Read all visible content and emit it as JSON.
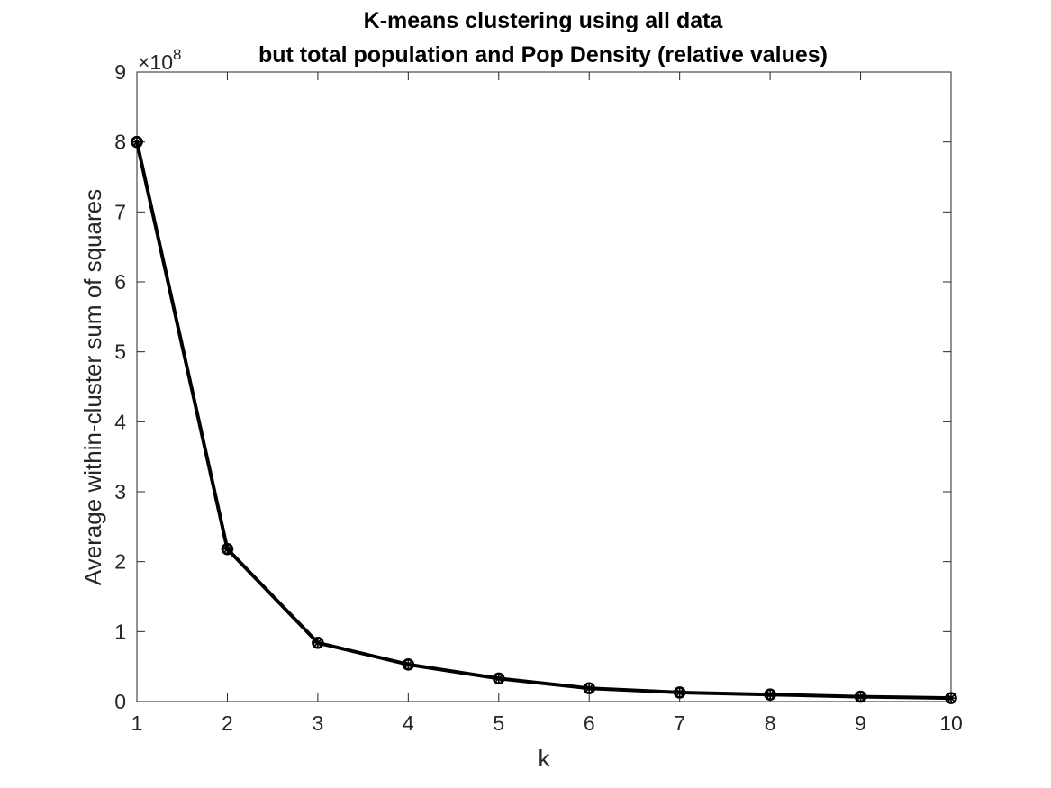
{
  "chart_data": {
    "type": "line",
    "title": "K-means clustering using all data",
    "subtitle": "but total population and Pop Density (relative values)",
    "xlabel": "k",
    "ylabel": "Average within-cluster sum of squares",
    "y_exponent_label": "×10",
    "y_exponent_power": "8",
    "xlim": [
      1,
      10
    ],
    "ylim": [
      0,
      9
    ],
    "x_ticks": [
      1,
      2,
      3,
      4,
      5,
      6,
      7,
      8,
      9,
      10
    ],
    "y_ticks": [
      0,
      1,
      2,
      3,
      4,
      5,
      6,
      7,
      8,
      9
    ],
    "y_scale": 100000000,
    "x": [
      1,
      2,
      3,
      4,
      5,
      6,
      7,
      8,
      9,
      10
    ],
    "y": [
      8.0,
      2.18,
      0.84,
      0.53,
      0.33,
      0.19,
      0.13,
      0.1,
      0.07,
      0.05
    ],
    "line_color": "#000000",
    "marker": "circle-star",
    "grid": false
  }
}
